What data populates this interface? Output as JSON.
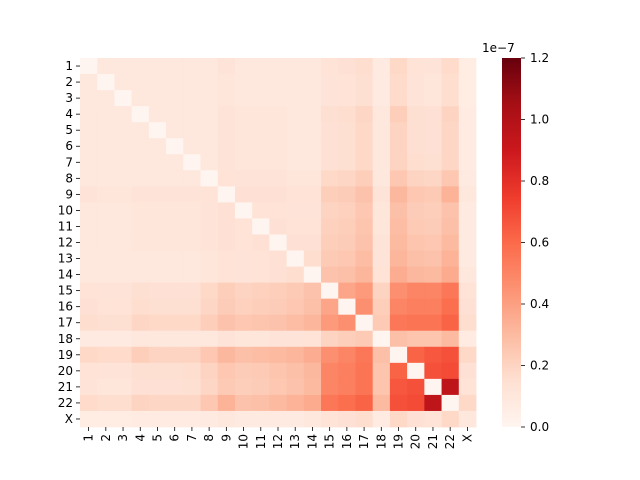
{
  "chart_data": {
    "type": "heatmap",
    "title": "",
    "xlabel": "",
    "ylabel": "",
    "labels": [
      "1",
      "2",
      "3",
      "4",
      "5",
      "6",
      "7",
      "8",
      "9",
      "10",
      "11",
      "12",
      "13",
      "14",
      "15",
      "16",
      "17",
      "18",
      "19",
      "20",
      "21",
      "22",
      "X"
    ],
    "values": [
      [
        0.0,
        0.09,
        0.09,
        0.1,
        0.1,
        0.1,
        0.1,
        0.1,
        0.12,
        0.1,
        0.1,
        0.1,
        0.09,
        0.09,
        0.13,
        0.14,
        0.16,
        0.08,
        0.18,
        0.13,
        0.12,
        0.17,
        0.06
      ],
      [
        0.09,
        0.0,
        0.09,
        0.1,
        0.1,
        0.1,
        0.1,
        0.1,
        0.11,
        0.1,
        0.1,
        0.1,
        0.09,
        0.09,
        0.12,
        0.13,
        0.15,
        0.08,
        0.17,
        0.12,
        0.11,
        0.16,
        0.06
      ],
      [
        0.09,
        0.09,
        0.0,
        0.1,
        0.1,
        0.1,
        0.1,
        0.1,
        0.11,
        0.1,
        0.1,
        0.1,
        0.09,
        0.09,
        0.12,
        0.13,
        0.15,
        0.08,
        0.17,
        0.12,
        0.11,
        0.16,
        0.06
      ],
      [
        0.1,
        0.1,
        0.1,
        0.0,
        0.1,
        0.1,
        0.1,
        0.1,
        0.12,
        0.11,
        0.11,
        0.11,
        0.1,
        0.1,
        0.15,
        0.16,
        0.19,
        0.09,
        0.22,
        0.15,
        0.14,
        0.2,
        0.07
      ],
      [
        0.1,
        0.1,
        0.1,
        0.1,
        0.0,
        0.1,
        0.1,
        0.1,
        0.12,
        0.11,
        0.11,
        0.11,
        0.1,
        0.1,
        0.14,
        0.15,
        0.18,
        0.09,
        0.2,
        0.15,
        0.14,
        0.19,
        0.07
      ],
      [
        0.1,
        0.1,
        0.1,
        0.1,
        0.1,
        0.0,
        0.1,
        0.1,
        0.12,
        0.11,
        0.11,
        0.11,
        0.1,
        0.1,
        0.14,
        0.15,
        0.18,
        0.09,
        0.2,
        0.15,
        0.14,
        0.19,
        0.07
      ],
      [
        0.1,
        0.1,
        0.1,
        0.1,
        0.1,
        0.1,
        0.0,
        0.1,
        0.12,
        0.11,
        0.11,
        0.11,
        0.1,
        0.1,
        0.14,
        0.15,
        0.18,
        0.09,
        0.2,
        0.16,
        0.15,
        0.19,
        0.07
      ],
      [
        0.1,
        0.1,
        0.1,
        0.1,
        0.1,
        0.1,
        0.1,
        0.0,
        0.13,
        0.12,
        0.12,
        0.12,
        0.11,
        0.11,
        0.18,
        0.19,
        0.22,
        0.1,
        0.25,
        0.2,
        0.19,
        0.25,
        0.08
      ],
      [
        0.12,
        0.11,
        0.11,
        0.12,
        0.12,
        0.12,
        0.12,
        0.13,
        0.0,
        0.14,
        0.14,
        0.14,
        0.13,
        0.13,
        0.22,
        0.23,
        0.27,
        0.12,
        0.31,
        0.25,
        0.24,
        0.33,
        0.09
      ],
      [
        0.1,
        0.1,
        0.1,
        0.11,
        0.11,
        0.11,
        0.11,
        0.12,
        0.14,
        0.0,
        0.13,
        0.13,
        0.12,
        0.12,
        0.2,
        0.21,
        0.25,
        0.11,
        0.28,
        0.23,
        0.22,
        0.27,
        0.08
      ],
      [
        0.1,
        0.1,
        0.1,
        0.11,
        0.11,
        0.11,
        0.11,
        0.12,
        0.14,
        0.13,
        0.0,
        0.14,
        0.13,
        0.13,
        0.21,
        0.22,
        0.26,
        0.11,
        0.29,
        0.24,
        0.23,
        0.28,
        0.08
      ],
      [
        0.1,
        0.1,
        0.1,
        0.11,
        0.11,
        0.11,
        0.11,
        0.12,
        0.14,
        0.13,
        0.14,
        0.0,
        0.14,
        0.14,
        0.22,
        0.23,
        0.27,
        0.12,
        0.3,
        0.26,
        0.25,
        0.3,
        0.08
      ],
      [
        0.09,
        0.09,
        0.09,
        0.1,
        0.1,
        0.1,
        0.1,
        0.11,
        0.13,
        0.12,
        0.13,
        0.14,
        0.0,
        0.16,
        0.24,
        0.25,
        0.29,
        0.12,
        0.32,
        0.28,
        0.27,
        0.33,
        0.08
      ],
      [
        0.09,
        0.09,
        0.09,
        0.1,
        0.1,
        0.1,
        0.1,
        0.11,
        0.13,
        0.12,
        0.13,
        0.14,
        0.16,
        0.0,
        0.27,
        0.28,
        0.32,
        0.13,
        0.35,
        0.31,
        0.3,
        0.36,
        0.09
      ],
      [
        0.13,
        0.12,
        0.12,
        0.15,
        0.14,
        0.14,
        0.14,
        0.18,
        0.22,
        0.2,
        0.21,
        0.22,
        0.24,
        0.27,
        0.0,
        0.38,
        0.42,
        0.2,
        0.46,
        0.5,
        0.5,
        0.55,
        0.13
      ],
      [
        0.14,
        0.13,
        0.13,
        0.16,
        0.15,
        0.15,
        0.15,
        0.19,
        0.23,
        0.21,
        0.22,
        0.23,
        0.25,
        0.28,
        0.38,
        0.0,
        0.46,
        0.22,
        0.5,
        0.52,
        0.52,
        0.58,
        0.14
      ],
      [
        0.16,
        0.15,
        0.15,
        0.19,
        0.18,
        0.18,
        0.18,
        0.22,
        0.27,
        0.25,
        0.26,
        0.27,
        0.29,
        0.32,
        0.42,
        0.46,
        0.0,
        0.24,
        0.55,
        0.56,
        0.56,
        0.62,
        0.16
      ],
      [
        0.08,
        0.08,
        0.08,
        0.09,
        0.09,
        0.09,
        0.09,
        0.1,
        0.12,
        0.11,
        0.11,
        0.12,
        0.12,
        0.13,
        0.2,
        0.22,
        0.24,
        0.0,
        0.28,
        0.26,
        0.26,
        0.3,
        0.07
      ],
      [
        0.18,
        0.17,
        0.17,
        0.22,
        0.2,
        0.2,
        0.2,
        0.25,
        0.31,
        0.28,
        0.29,
        0.3,
        0.32,
        0.35,
        0.46,
        0.5,
        0.55,
        0.28,
        0.0,
        0.62,
        0.66,
        0.68,
        0.18
      ],
      [
        0.13,
        0.12,
        0.12,
        0.15,
        0.15,
        0.15,
        0.16,
        0.2,
        0.25,
        0.23,
        0.24,
        0.26,
        0.28,
        0.31,
        0.5,
        0.52,
        0.56,
        0.26,
        0.62,
        0.0,
        0.68,
        0.7,
        0.14
      ],
      [
        0.12,
        0.11,
        0.11,
        0.14,
        0.14,
        0.14,
        0.15,
        0.19,
        0.24,
        0.22,
        0.23,
        0.25,
        0.27,
        0.3,
        0.5,
        0.52,
        0.56,
        0.26,
        0.66,
        0.68,
        0.0,
        0.95,
        0.13
      ],
      [
        0.17,
        0.16,
        0.16,
        0.2,
        0.19,
        0.19,
        0.19,
        0.25,
        0.33,
        0.27,
        0.28,
        0.3,
        0.33,
        0.36,
        0.55,
        0.58,
        0.62,
        0.3,
        0.68,
        0.7,
        0.95,
        0.0,
        0.18
      ],
      [
        0.06,
        0.06,
        0.06,
        0.07,
        0.07,
        0.07,
        0.07,
        0.08,
        0.09,
        0.08,
        0.08,
        0.08,
        0.08,
        0.09,
        0.13,
        0.14,
        0.16,
        0.07,
        0.18,
        0.14,
        0.13,
        0.18,
        0.1
      ]
    ],
    "value_scale": "1e-7",
    "colorbar": {
      "range": [
        0.0,
        1.2
      ],
      "ticks": [
        "0.0",
        "0.2",
        "0.4",
        "0.6",
        "0.8",
        "1.0",
        "1.2"
      ],
      "offset_label": "1e−7",
      "colormap": "Reds",
      "colors": [
        "#fff5f0",
        "#fee0d2",
        "#fcbba1",
        "#fc9272",
        "#fb6a4a",
        "#ef3b2c",
        "#cb181d",
        "#a50f15",
        "#67000d"
      ]
    },
    "grid": false,
    "legend": "colorbar-right"
  }
}
